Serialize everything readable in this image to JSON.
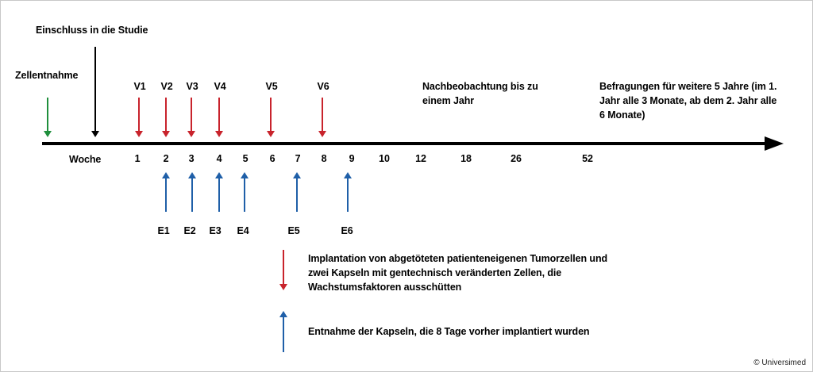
{
  "colors": {
    "axis": "#000000",
    "red_arrow": "#c8232c",
    "blue_arrow": "#1f5fa8",
    "green_arrow": "#1f8f3c",
    "black_arrow": "#000000"
  },
  "timeline": {
    "week_label": "Woche",
    "weeks": [
      "1",
      "2",
      "3",
      "4",
      "5",
      "6",
      "7",
      "8",
      "9",
      "10",
      "12",
      "18",
      "26",
      "52"
    ]
  },
  "events": {
    "cell_harvest": "Zellentnahme",
    "study_inclusion": "Einschluss in die Studie",
    "followup": "Nachbeobachtung bis zu einem Jahr",
    "surveys": "Befragungen für weitere 5 Jahre (im 1. Jahr alle 3 Monate, ab dem 2. Jahr alle 6 Monate)"
  },
  "visits": [
    "V1",
    "V2",
    "V3",
    "V4",
    "V5",
    "V6"
  ],
  "extractions": [
    "E1",
    "E2",
    "E3",
    "E4",
    "E5",
    "E6"
  ],
  "legend": {
    "red_text": "Implantation von abgetöteten patienteneigenen Tumorzellen und zwei Kapseln mit gentechnisch veränderten Zellen, die Wachstumsfaktoren ausschütten",
    "blue_text": "Entnahme der Kapseln, die 8 Tage vorher implantiert wurden"
  },
  "copyright": "© Universimed"
}
